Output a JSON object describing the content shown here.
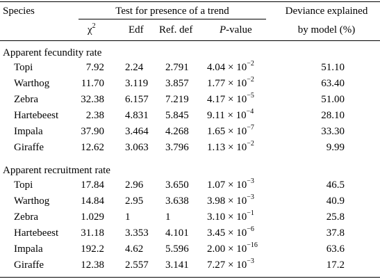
{
  "header": {
    "species": "Species",
    "test_group": "Test for presence of a trend",
    "chi2_symbol": "χ",
    "chi2_exp": "2",
    "edf": "Edf",
    "ref_def": "Ref. def",
    "p_italic": "P",
    "p_rest": "-value",
    "deviance_line1": "Deviance explained",
    "deviance_line2": "by model (%)"
  },
  "sections": [
    {
      "title": "Apparent fecundity rate",
      "rows": [
        {
          "species": "Topi",
          "chi2": "7.92",
          "edf": "2.24",
          "refdef": "2.791",
          "p_mant": "4.04",
          "p_exp": "−2",
          "dev": "51.10"
        },
        {
          "species": "Warthog",
          "chi2": "11.70",
          "edf": "3.119",
          "refdef": "3.857",
          "p_mant": "1.77",
          "p_exp": "−2",
          "dev": "63.40"
        },
        {
          "species": "Zebra",
          "chi2": "32.38",
          "edf": "6.157",
          "refdef": "7.219",
          "p_mant": "4.17",
          "p_exp": "−5",
          "dev": "51.00"
        },
        {
          "species": "Hartebeest",
          "chi2": "2.38",
          "edf": "4.831",
          "refdef": "5.845",
          "p_mant": "9.11",
          "p_exp": "−4",
          "dev": "28.10"
        },
        {
          "species": "Impala",
          "chi2": "37.90",
          "edf": "3.464",
          "refdef": "4.268",
          "p_mant": "1.65",
          "p_exp": "−7",
          "dev": "33.30"
        },
        {
          "species": "Giraffe",
          "chi2": "12.62",
          "edf": "3.063",
          "refdef": "3.796",
          "p_mant": "1.13",
          "p_exp": "−2",
          "dev": "9.99"
        }
      ]
    },
    {
      "title": "Apparent recruitment rate",
      "rows": [
        {
          "species": "Topi",
          "chi2": "17.84",
          "edf": "2.96",
          "refdef": "3.650",
          "p_mant": "1.07",
          "p_exp": "−3",
          "dev": "46.5"
        },
        {
          "species": "Warthog",
          "chi2": "14.84",
          "edf": "2.95",
          "refdef": "3.638",
          "p_mant": "3.98",
          "p_exp": "−3",
          "dev": "40.9"
        },
        {
          "species": "Zebra",
          "chi2": "1.029",
          "edf": "1",
          "refdef": "1",
          "p_mant": "3.10",
          "p_exp": "−1",
          "dev": "25.8"
        },
        {
          "species": "Hartebeest",
          "chi2": "31.18",
          "edf": "3.353",
          "refdef": "4.101",
          "p_mant": "3.45",
          "p_exp": "−6",
          "dev": "37.8"
        },
        {
          "species": "Impala",
          "chi2": "192.2",
          "edf": "4.62",
          "refdef": "5.596",
          "p_mant": "2.00",
          "p_exp": "−16",
          "dev": "63.6"
        },
        {
          "species": "Giraffe",
          "chi2": "12.38",
          "edf": "2.557",
          "refdef": "3.141",
          "p_mant": "7.27",
          "p_exp": "−3",
          "dev": "17.2"
        }
      ]
    }
  ],
  "times_sign": "× 10"
}
